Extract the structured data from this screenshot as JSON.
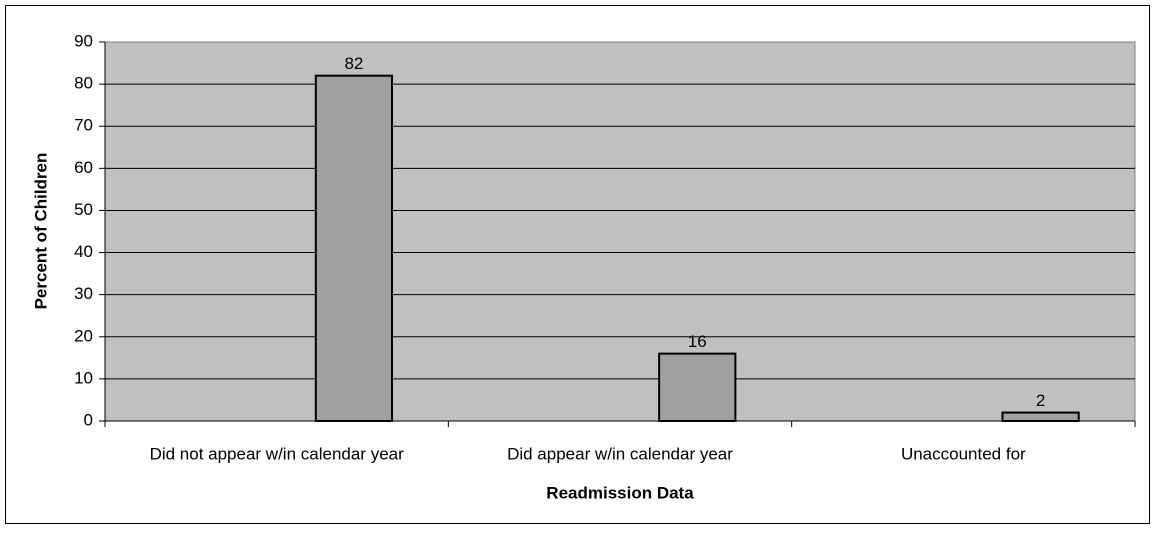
{
  "chart_data": {
    "type": "bar",
    "categories": [
      "Did not appear w/in calendar year",
      "Did appear w/in calendar year",
      "Unaccounted for"
    ],
    "values": [
      82,
      16,
      2
    ],
    "color": "#a0a0a0",
    "plot_background": "#c0c0c0",
    "ylim": [
      0,
      90
    ],
    "yticks": [
      0,
      10,
      20,
      30,
      40,
      50,
      60,
      70,
      80,
      90
    ],
    "grid": true,
    "xlabel": "Readmission Data",
    "ylabel": "Percent of Children"
  }
}
